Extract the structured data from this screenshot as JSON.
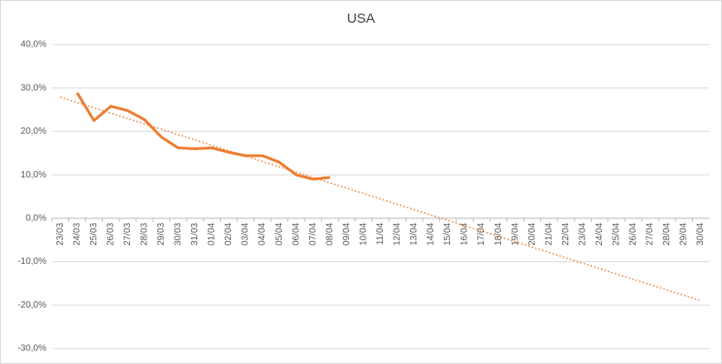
{
  "chart_data": {
    "type": "line",
    "title": "USA",
    "categories": [
      "23/03",
      "24/03",
      "25/03",
      "26/03",
      "27/03",
      "28/03",
      "29/03",
      "30/03",
      "31/03",
      "01/04",
      "02/04",
      "03/04",
      "04/04",
      "05/04",
      "06/04",
      "07/04",
      "08/04",
      "09/04",
      "10/04",
      "11/04",
      "12/04",
      "13/04",
      "14/04",
      "15/04",
      "16/04",
      "17/04",
      "18/04",
      "19/04",
      "20/04",
      "21/04",
      "22/04",
      "23/04",
      "24/04",
      "25/04",
      "26/04",
      "27/04",
      "28/04",
      "29/04",
      "30/04"
    ],
    "series": [
      {
        "color": "#ed7d31",
        "values": [
          null,
          28.9,
          22.5,
          25.8,
          24.8,
          22.7,
          18.7,
          16.2,
          16.0,
          16.2,
          15.2,
          14.4,
          14.4,
          12.9,
          10.0,
          9.0,
          9.4,
          null,
          null,
          null,
          null,
          null,
          null,
          null,
          null,
          null,
          null,
          null,
          null,
          null,
          null,
          null,
          null,
          null,
          null,
          null,
          null,
          null,
          null
        ]
      }
    ],
    "trendline": {
      "color": "#ed7d31",
      "values": [
        27.9,
        -19.0
      ]
    },
    "ylim": [
      -30,
      40
    ],
    "yticks": [
      {
        "value": -30,
        "label": "-30,0%"
      },
      {
        "value": -20,
        "label": "-20,0%"
      },
      {
        "value": -10,
        "label": "-10,0%"
      },
      {
        "value": 0,
        "label": "0,0%"
      },
      {
        "value": 10,
        "label": "10,0%"
      },
      {
        "value": 20,
        "label": "20,0%"
      },
      {
        "value": 30,
        "label": "30,0%"
      },
      {
        "value": 40,
        "label": "40,0%"
      }
    ],
    "grid": true
  }
}
